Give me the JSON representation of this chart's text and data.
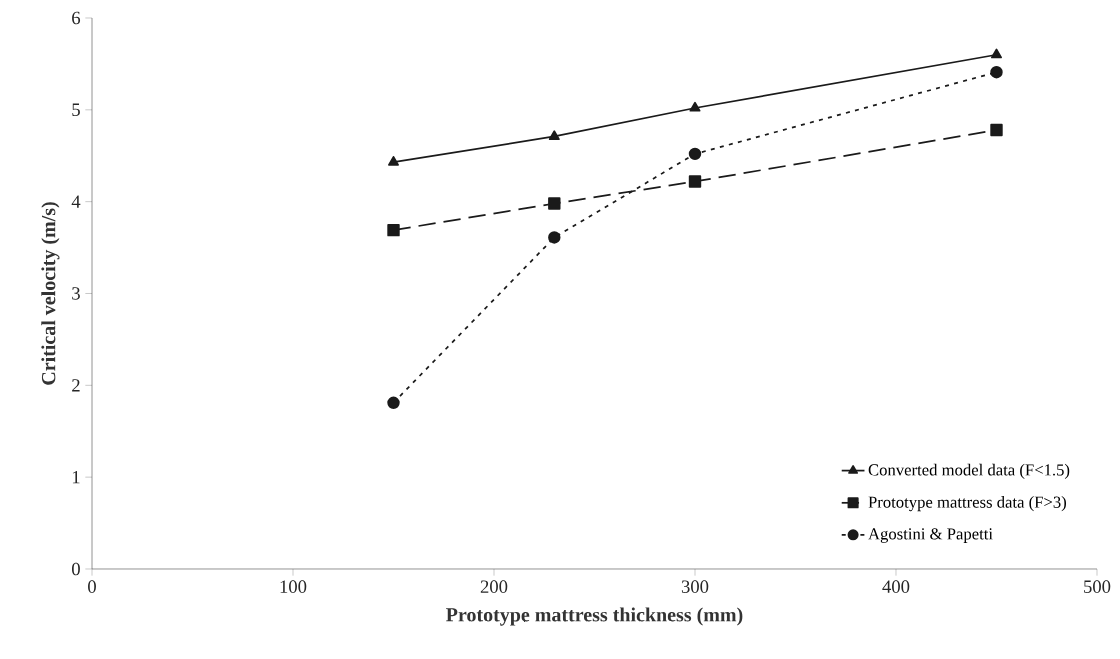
{
  "chart_data": {
    "type": "line",
    "xlabel": "Prototype mattress thickness (mm)",
    "ylabel": "Critical velocity (m/s)",
    "x": [
      150,
      230,
      300,
      450
    ],
    "series": [
      {
        "name": "Converted model data (F<1.5)",
        "color": "#1a1a1a",
        "marker": "triangle",
        "line_style": "solid",
        "values": [
          4.43,
          4.71,
          5.02,
          5.6
        ]
      },
      {
        "name": "Prototype mattress data (F>3)",
        "color": "#1a1a1a",
        "marker": "square",
        "line_style": "dashed",
        "values": [
          3.69,
          3.98,
          4.22,
          4.78
        ]
      },
      {
        "name": "Agostini & Papetti",
        "color": "#1a1a1a",
        "marker": "circle",
        "line_style": "dotted",
        "values": [
          1.81,
          3.61,
          4.52,
          5.41
        ]
      }
    ],
    "xlim": [
      0,
      500
    ],
    "xticks": [
      0,
      100,
      200,
      300,
      400,
      500
    ],
    "ylim": [
      0,
      6
    ],
    "yticks": [
      0,
      1,
      2,
      3,
      4,
      5,
      6
    ],
    "grid": false,
    "legend": "bottom right"
  }
}
